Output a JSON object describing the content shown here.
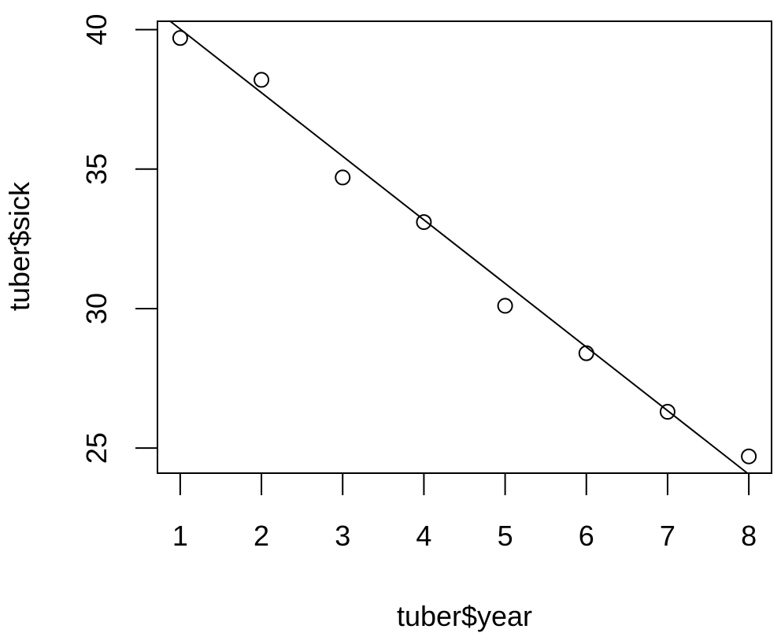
{
  "chart_data": {
    "type": "scatter",
    "title": "",
    "xlabel": "tuber$year",
    "ylabel": "tuber$sick",
    "xlim": [
      0.72,
      8.28
    ],
    "ylim": [
      24.1,
      40.3
    ],
    "x_ticks": [
      1,
      2,
      3,
      4,
      5,
      6,
      7,
      8
    ],
    "x_tick_labels": [
      "1",
      "2",
      "3",
      "4",
      "5",
      "6",
      "7",
      "8"
    ],
    "y_ticks": [
      25,
      30,
      35,
      40
    ],
    "y_tick_labels": [
      "25",
      "30",
      "35",
      "40"
    ],
    "grid": false,
    "series": [
      {
        "marker": "open-circle",
        "x": [
          1,
          2,
          3,
          4,
          5,
          6,
          7,
          8
        ],
        "y": [
          39.7,
          38.2,
          34.7,
          33.1,
          30.1,
          28.4,
          26.3,
          24.7
        ]
      }
    ],
    "fit_line": {
      "type": "linear",
      "intercept": 42.3,
      "slope": -2.28
    },
    "colors": {
      "points": "#000000",
      "line": "#000000",
      "background": "#ffffff"
    }
  }
}
